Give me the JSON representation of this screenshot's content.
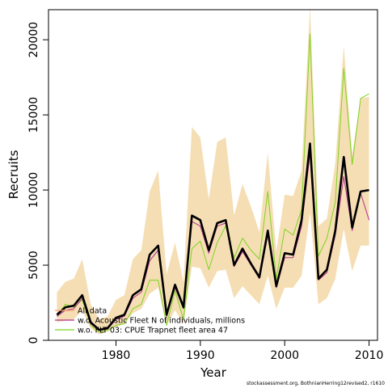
{
  "chart_data": {
    "type": "line",
    "xlabel": "Year",
    "ylabel": "Recruits",
    "xlim": [
      1972,
      2011
    ],
    "ylim": [
      0,
      22000
    ],
    "x_ticks": [
      1980,
      1990,
      2000,
      2010
    ],
    "y_ticks": [
      0,
      5000,
      10000,
      15000,
      20000
    ],
    "grid": false,
    "legend_position": "bottom-left",
    "x": [
      1973,
      1974,
      1975,
      1976,
      1977,
      1978,
      1979,
      1980,
      1981,
      1982,
      1983,
      1984,
      1985,
      1986,
      1987,
      1988,
      1989,
      1990,
      1991,
      1992,
      1993,
      1994,
      1995,
      1996,
      1997,
      1998,
      1999,
      2000,
      2001,
      2002,
      2003,
      2004,
      2005,
      2006,
      2007,
      2008,
      2009,
      2010
    ],
    "band": {
      "color": "#F5DEB3",
      "upper": [
        3200,
        3900,
        4100,
        5400,
        2400,
        1400,
        1600,
        2700,
        3000,
        5400,
        6000,
        9900,
        11300,
        4400,
        6500,
        3900,
        14200,
        13500,
        9400,
        13200,
        13500,
        8300,
        10400,
        8900,
        7200,
        12500,
        5900,
        9700,
        9600,
        11300,
        22200,
        7600,
        8100,
        11800,
        19600,
        12300,
        16100,
        16200
      ],
      "lower": [
        1200,
        1300,
        1400,
        2000,
        800,
        400,
        600,
        900,
        1100,
        1800,
        2100,
        3100,
        3500,
        1000,
        2000,
        1100,
        4900,
        4800,
        3500,
        4600,
        4700,
        2800,
        3600,
        3000,
        2400,
        4300,
        2100,
        3500,
        3500,
        4300,
        8500,
        2400,
        2800,
        4100,
        7400,
        4600,
        6300,
        6300
      ]
    },
    "series": [
      {
        "name": "All data",
        "color": "#000000",
        "values": [
          1700,
          2200,
          2300,
          3000,
          1200,
          700,
          800,
          1500,
          1700,
          3000,
          3400,
          5700,
          6300,
          1700,
          3700,
          2200,
          8300,
          8000,
          6000,
          7800,
          8000,
          5000,
          6100,
          5100,
          4200,
          7300,
          3600,
          5800,
          5700,
          8000,
          13100,
          4100,
          4700,
          7300,
          12200,
          7500,
          9900,
          10000
        ]
      },
      {
        "name": "w.o. Acoustic Fleet  N of individuals, millions",
        "color": "#B0308F",
        "values": [
          1600,
          2000,
          2100,
          2800,
          1100,
          650,
          750,
          1400,
          1600,
          2800,
          3200,
          5300,
          6000,
          1600,
          3500,
          2100,
          7900,
          7600,
          5800,
          7600,
          7800,
          4900,
          5900,
          5000,
          4100,
          7000,
          3500,
          5500,
          5500,
          7600,
          12400,
          4000,
          4500,
          7000,
          10900,
          7300,
          9800,
          8000
        ]
      },
      {
        "name": "w.o. FLT 03: CPUE Trapnet fleet area 47",
        "color": "#7DD321",
        "values": [
          1600,
          2400,
          2200,
          2700,
          1000,
          550,
          650,
          1000,
          1100,
          2100,
          2400,
          4000,
          4000,
          1000,
          3300,
          1400,
          6100,
          6600,
          4700,
          6500,
          7600,
          5500,
          6800,
          6000,
          5400,
          9900,
          4100,
          7400,
          7000,
          8700,
          20400,
          5600,
          6800,
          9200,
          18100,
          11700,
          16100,
          16400
        ]
      }
    ]
  },
  "footnote": "stockassessment.org, BothnianHerring12revised2, r1610"
}
